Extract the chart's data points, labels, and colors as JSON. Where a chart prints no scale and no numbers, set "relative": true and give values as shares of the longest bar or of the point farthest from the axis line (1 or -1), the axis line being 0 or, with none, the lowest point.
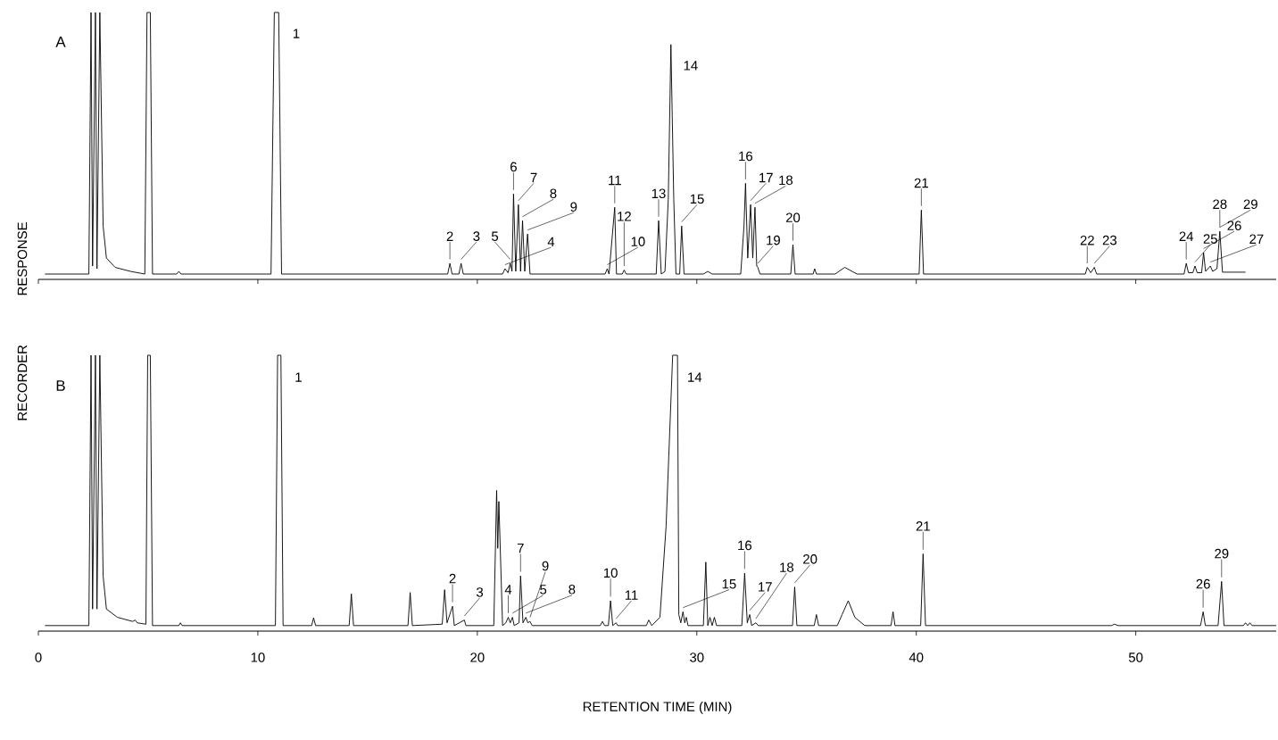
{
  "chart_data": [
    {
      "type": "line",
      "relative": true,
      "xlim": [
        0,
        56.4
      ],
      "xticks": [
        0,
        10,
        20,
        30,
        40,
        50
      ],
      "tick_labels": false,
      "ylabel": "RESPONSE",
      "annotations": [
        "A",
        {
          "text": "1",
          "x": 10.85,
          "y": 1
        },
        {
          "text": "2",
          "x": 18.75,
          "y": 0.06
        },
        {
          "text": "3",
          "x": 19.26,
          "y": 0.06
        },
        {
          "text": "4",
          "x": 21.26,
          "y": 0.04
        },
        {
          "text": "5",
          "x": 21.5,
          "y": 0.06
        },
        {
          "text": "6",
          "x": 21.65,
          "y": 0.32
        },
        {
          "text": "7",
          "x": 21.87,
          "y": 0.28
        },
        {
          "text": "8",
          "x": 22.06,
          "y": 0.22
        },
        {
          "text": "9",
          "x": 22.29,
          "y": 0.17
        },
        {
          "text": "10",
          "x": 25.92,
          "y": 0.04
        },
        {
          "text": "11",
          "x": 26.26,
          "y": 0.27
        },
        {
          "text": "12",
          "x": 26.69,
          "y": 0.035
        },
        {
          "text": "13",
          "x": 28.26,
          "y": 0.22
        },
        {
          "text": "14",
          "x": 28.82,
          "y": 0.88
        },
        {
          "text": "15",
          "x": 29.31,
          "y": 0.2
        },
        {
          "text": "16",
          "x": 32.22,
          "y": 0.36
        },
        {
          "text": "17",
          "x": 32.45,
          "y": 0.28
        },
        {
          "text": "18",
          "x": 32.65,
          "y": 0.27
        },
        {
          "text": "19",
          "x": 32.78,
          "y": 0.045
        },
        {
          "text": "20",
          "x": 34.38,
          "y": 0.13
        },
        {
          "text": "21",
          "x": 40.23,
          "y": 0.26
        },
        {
          "text": "22",
          "x": 47.79,
          "y": 0.045
        },
        {
          "text": "23",
          "x": 48.11,
          "y": 0.045
        },
        {
          "text": "24",
          "x": 52.3,
          "y": 0.06
        },
        {
          "text": "25",
          "x": 52.7,
          "y": 0.05
        },
        {
          "text": "26",
          "x": 53.09,
          "y": 0.1
        },
        {
          "text": "27",
          "x": 53.4,
          "y": 0.05
        },
        {
          "text": "28",
          "x": 53.83,
          "y": 0.18
        },
        {
          "text": "29",
          "x": 53.83,
          "y": 0.18
        }
      ],
      "series": [
        {
          "color": "#000000",
          "x": [
            0.3,
            2.3,
            2.4,
            2.47,
            2.6,
            2.67,
            2.8,
            2.95,
            3.1,
            3.5,
            4.2,
            4.85,
            4.95,
            5.1,
            5.2,
            6.3,
            6.4,
            6.5,
            10.6,
            10.75,
            10.95,
            11.08,
            18.65,
            18.75,
            18.85,
            19.16,
            19.26,
            19.36,
            21.15,
            21.26,
            21.4,
            21.5,
            21.58,
            21.65,
            21.75,
            21.87,
            21.97,
            22.06,
            22.16,
            22.29,
            22.4,
            25.82,
            25.92,
            26.0,
            26.26,
            26.34,
            26.6,
            26.69,
            26.78,
            28.15,
            28.26,
            28.38,
            28.55,
            28.7,
            28.82,
            28.95,
            29.05,
            29.22,
            29.31,
            29.42,
            30.3,
            30.5,
            30.7,
            32.0,
            32.15,
            32.22,
            32.32,
            32.45,
            32.55,
            32.65,
            32.73,
            32.78,
            32.88,
            34.28,
            34.38,
            34.48,
            35.3,
            35.37,
            35.45,
            36.3,
            36.74,
            37.3,
            40.13,
            40.23,
            40.33,
            47.7,
            47.79,
            47.95,
            48.11,
            48.22,
            52.2,
            52.3,
            52.4,
            52.6,
            52.7,
            52.8,
            53.0,
            53.09,
            53.18,
            53.4,
            53.5,
            53.7,
            53.83,
            53.95,
            55.0
          ],
          "values": [
            0.02,
            0.02,
            1,
            0.05,
            1,
            0.04,
            1,
            0.2,
            0.08,
            0.045,
            0.03,
            0.02,
            1,
            1,
            0.02,
            0.02,
            0.03,
            0.02,
            0.02,
            1,
            1,
            0.02,
            0.02,
            0.06,
            0.02,
            0.02,
            0.06,
            0.02,
            0.02,
            0.04,
            0.025,
            0.06,
            0.03,
            0.32,
            0.03,
            0.28,
            0.03,
            0.22,
            0.03,
            0.17,
            0.02,
            0.02,
            0.04,
            0.02,
            0.27,
            0.02,
            0.02,
            0.035,
            0.02,
            0.02,
            0.22,
            0.02,
            0.03,
            0.3,
            0.88,
            0.3,
            0.02,
            0.02,
            0.2,
            0.02,
            0.02,
            0.03,
            0.02,
            0.02,
            0.2,
            0.36,
            0.08,
            0.28,
            0.08,
            0.27,
            0.05,
            0.045,
            0.02,
            0.02,
            0.13,
            0.02,
            0.02,
            0.04,
            0.02,
            0.02,
            0.045,
            0.02,
            0.02,
            0.26,
            0.02,
            0.02,
            0.045,
            0.025,
            0.045,
            0.02,
            0.02,
            0.06,
            0.025,
            0.025,
            0.05,
            0.025,
            0.025,
            0.1,
            0.03,
            0.05,
            0.03,
            0.04,
            0.18,
            0.027,
            0.027
          ]
        }
      ]
    },
    {
      "type": "line",
      "relative": true,
      "xlim": [
        0,
        56.4
      ],
      "xticks": [
        0,
        10,
        20,
        30,
        40,
        50
      ],
      "xlabel": "RETENTION TIME (MIN)",
      "ylabel": "RECORDER",
      "annotations": [
        "B",
        {
          "text": "1",
          "x": 10.95,
          "y": 1
        },
        {
          "text": "2",
          "x": 18.87,
          "y": 0.09
        },
        {
          "text": "3",
          "x": 19.41,
          "y": 0.04
        },
        {
          "text": "4",
          "x": 21.41,
          "y": 0.05
        },
        {
          "text": "5",
          "x": 21.6,
          "y": 0.05
        },
        {
          "text": "7",
          "x": 21.97,
          "y": 0.2
        },
        {
          "text": "8",
          "x": 22.21,
          "y": 0.05
        },
        {
          "text": "9",
          "x": 22.4,
          "y": 0.035
        },
        {
          "text": "10",
          "x": 26.07,
          "y": 0.11
        },
        {
          "text": "11",
          "x": 26.32,
          "y": 0.03
        },
        {
          "text": "14",
          "x": 29.0,
          "y": 1
        },
        {
          "text": "15",
          "x": 29.37,
          "y": 0.07
        },
        {
          "text": "16",
          "x": 32.18,
          "y": 0.21
        },
        {
          "text": "17",
          "x": 32.41,
          "y": 0.06
        },
        {
          "text": "18",
          "x": 32.69,
          "y": 0.03
        },
        {
          "text": "20",
          "x": 34.46,
          "y": 0.16
        },
        {
          "text": "21",
          "x": 40.31,
          "y": 0.28
        },
        {
          "text": "26",
          "x": 53.07,
          "y": 0.07
        },
        {
          "text": "29",
          "x": 53.91,
          "y": 0.18
        }
      ],
      "series": [
        {
          "color": "#000000",
          "x": [
            0.3,
            2.3,
            2.4,
            2.47,
            2.6,
            2.67,
            2.8,
            2.95,
            3.1,
            3.6,
            4.3,
            4.41,
            4.5,
            4.9,
            4.98,
            5.1,
            5.2,
            6.4,
            6.47,
            6.55,
            10.8,
            10.9,
            11.05,
            11.15,
            12.45,
            12.54,
            12.63,
            14.16,
            14.26,
            14.36,
            16.84,
            16.94,
            17.04,
            18.4,
            18.51,
            18.62,
            18.87,
            18.95,
            19.41,
            19.48,
            20.75,
            20.88,
            20.93,
            20.98,
            21.15,
            21.3,
            21.41,
            21.5,
            21.6,
            21.68,
            21.9,
            21.97,
            22.08,
            22.21,
            22.3,
            22.4,
            22.5,
            25.6,
            25.7,
            25.8,
            25.97,
            26.07,
            26.17,
            26.32,
            26.4,
            27.7,
            27.81,
            27.95,
            28.32,
            28.6,
            28.9,
            29.12,
            29.18,
            29.27,
            29.37,
            29.45,
            29.52,
            29.6,
            30.3,
            30.41,
            30.5,
            30.6,
            30.7,
            30.8,
            30.9,
            32.05,
            32.18,
            32.3,
            32.41,
            32.5,
            32.69,
            32.8,
            34.36,
            34.46,
            34.56,
            35.35,
            35.45,
            35.55,
            36.4,
            36.62,
            36.9,
            37.2,
            37.65,
            38.85,
            38.94,
            39.03,
            40.2,
            40.31,
            40.42,
            48.9,
            49.03,
            49.2,
            52.95,
            53.07,
            53.17,
            53.75,
            53.91,
            54.02,
            54.9,
            55.0,
            55.1,
            55.2,
            55.3,
            56.4
          ],
          "values": [
            0.02,
            0.02,
            1,
            0.08,
            1,
            0.08,
            1,
            0.2,
            0.08,
            0.05,
            0.035,
            0.04,
            0.03,
            0.025,
            1,
            1,
            0.02,
            0.02,
            0.03,
            0.02,
            0.02,
            1,
            1,
            0.02,
            0.02,
            0.048,
            0.02,
            0.02,
            0.135,
            0.02,
            0.02,
            0.14,
            0.02,
            0.025,
            0.15,
            0.03,
            0.09,
            0.02,
            0.04,
            0.02,
            0.02,
            0.51,
            0.3,
            0.47,
            0.02,
            0.03,
            0.05,
            0.03,
            0.05,
            0.02,
            0.03,
            0.2,
            0.03,
            0.05,
            0.03,
            0.035,
            0.02,
            0.02,
            0.035,
            0.02,
            0.02,
            0.11,
            0.02,
            0.03,
            0.02,
            0.02,
            0.04,
            0.02,
            0.05,
            0.38,
            1,
            1,
            0.06,
            0.03,
            0.07,
            0.03,
            0.05,
            0.02,
            0.02,
            0.25,
            0.02,
            0.05,
            0.02,
            0.05,
            0.02,
            0.02,
            0.21,
            0.03,
            0.06,
            0.02,
            0.03,
            0.02,
            0.02,
            0.16,
            0.02,
            0.02,
            0.06,
            0.02,
            0.02,
            0.06,
            0.11,
            0.05,
            0.02,
            0.02,
            0.07,
            0.02,
            0.02,
            0.28,
            0.02,
            0.02,
            0.025,
            0.02,
            0.02,
            0.07,
            0.02,
            0.02,
            0.18,
            0.02,
            0.02,
            0.03,
            0.02,
            0.03,
            0.02,
            0.02
          ]
        }
      ]
    }
  ]
}
